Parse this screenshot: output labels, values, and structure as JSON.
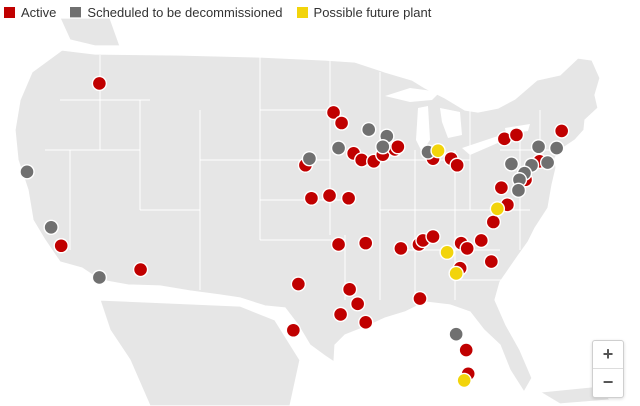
{
  "legend": [
    {
      "label": "Active",
      "color": "#c00000"
    },
    {
      "label": "Scheduled to be decommissioned",
      "color": "#707070"
    },
    {
      "label": "Possible future plant",
      "color": "#f2d40b"
    }
  ],
  "zoom": {
    "in_label": "+",
    "out_label": "−"
  },
  "plants": {
    "active": [
      [
        -117.0,
        47.5
      ],
      [
        -120.8,
        35.2
      ],
      [
        -112.9,
        33.4
      ],
      [
        -96.5,
        41.3
      ],
      [
        -95.9,
        38.8
      ],
      [
        -94.1,
        39.0
      ],
      [
        -92.2,
        38.8
      ],
      [
        -93.7,
        45.3
      ],
      [
        -92.9,
        44.5
      ],
      [
        -91.7,
        42.2
      ],
      [
        -90.9,
        41.7
      ],
      [
        -89.7,
        41.6
      ],
      [
        -88.8,
        42.1
      ],
      [
        -87.6,
        42.5
      ],
      [
        -87.3,
        42.7
      ],
      [
        -83.8,
        41.8
      ],
      [
        -82.0,
        41.8
      ],
      [
        -81.4,
        41.3
      ],
      [
        -76.7,
        43.3
      ],
      [
        -75.5,
        43.6
      ],
      [
        -71.0,
        43.9
      ],
      [
        -73.2,
        41.6
      ],
      [
        -74.6,
        40.2
      ],
      [
        -77.0,
        39.6
      ],
      [
        -76.4,
        38.3
      ],
      [
        -97.7,
        28.8
      ],
      [
        -97.2,
        32.3
      ],
      [
        -93.0,
        30.0
      ],
      [
        -92.1,
        31.9
      ],
      [
        -91.3,
        30.8
      ],
      [
        -90.5,
        29.4
      ],
      [
        -93.2,
        35.3
      ],
      [
        -90.5,
        35.4
      ],
      [
        -87.0,
        35.0
      ],
      [
        -85.2,
        35.3
      ],
      [
        -84.8,
        35.6
      ],
      [
        -83.8,
        35.9
      ],
      [
        -81.0,
        35.4
      ],
      [
        -80.4,
        35.0
      ],
      [
        -79.0,
        35.6
      ],
      [
        -78.0,
        34.0
      ],
      [
        -77.8,
        37.0
      ],
      [
        -81.1,
        33.5
      ],
      [
        -85.1,
        31.2
      ],
      [
        -80.5,
        27.3
      ],
      [
        -80.3,
        25.5
      ]
    ],
    "scheduled": [
      [
        -124.2,
        40.8
      ],
      [
        -121.8,
        36.6
      ],
      [
        -117.0,
        32.8
      ],
      [
        -96.1,
        41.8
      ],
      [
        -93.2,
        42.6
      ],
      [
        -90.2,
        44.0
      ],
      [
        -88.4,
        43.5
      ],
      [
        -88.8,
        42.7
      ],
      [
        -84.3,
        42.3
      ],
      [
        -76.0,
        41.4
      ],
      [
        -74.0,
        41.3
      ],
      [
        -73.3,
        42.7
      ],
      [
        -71.5,
        42.6
      ],
      [
        -72.4,
        41.5
      ],
      [
        -74.7,
        40.7
      ],
      [
        -75.2,
        40.2
      ],
      [
        -75.3,
        39.4
      ],
      [
        -81.5,
        28.5
      ]
    ],
    "future": [
      [
        -83.3,
        42.4
      ],
      [
        -77.4,
        38.0
      ],
      [
        -82.4,
        34.7
      ],
      [
        -81.5,
        33.1
      ],
      [
        -80.7,
        25.0
      ]
    ]
  }
}
